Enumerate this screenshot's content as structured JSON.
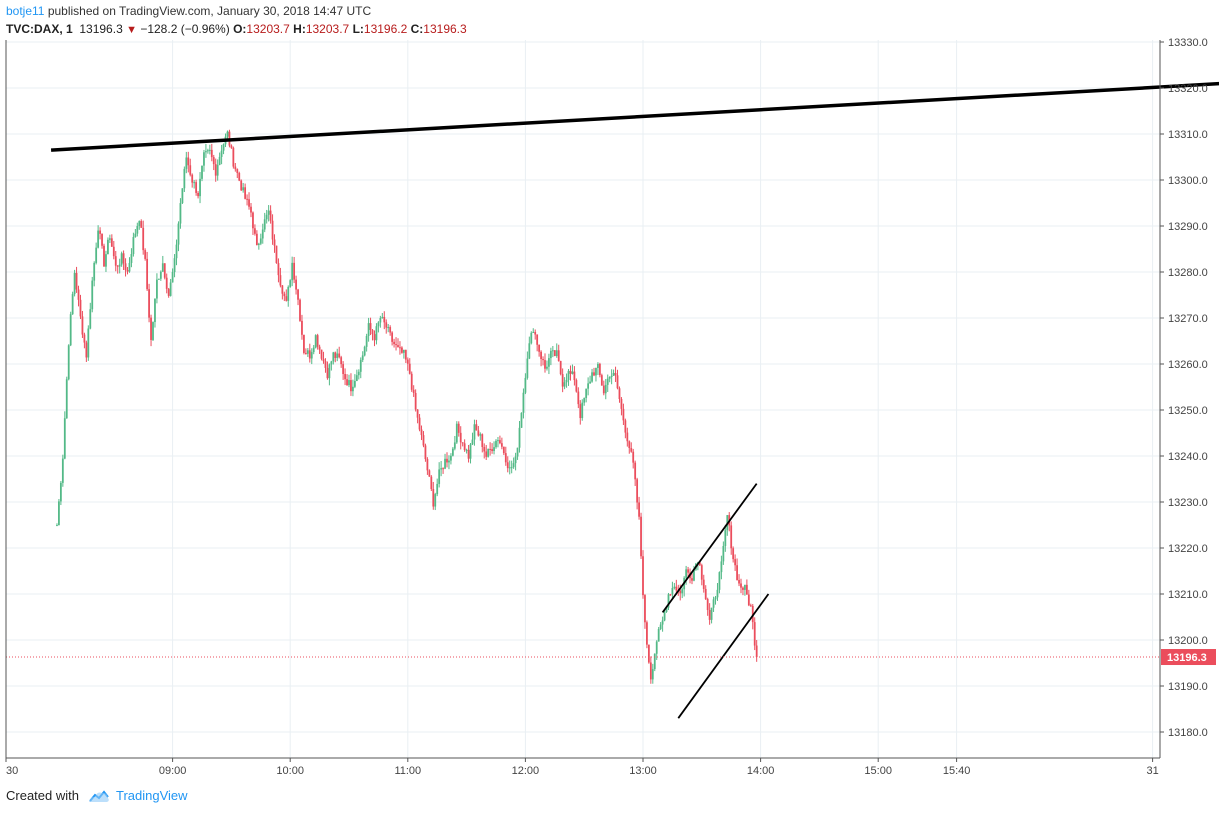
{
  "header": {
    "author": "botje11",
    "published_text": " published on TradingView.com, January 30, 2018 14:47 UTC"
  },
  "legend": {
    "symbol": "TVC:DAX, 1",
    "last": "13196.3",
    "arrow": "▼",
    "change": "−128.2 (−0.96%)",
    "open_label": "O:",
    "open": "13203.7",
    "high_label": "H:",
    "high": "13203.7",
    "low_label": "L:",
    "low": "13196.2",
    "close_label": "C:",
    "close": "13196.3"
  },
  "footer": {
    "created_with": "Created with",
    "brand": "TradingView"
  },
  "colors": {
    "up": "#53b987",
    "down": "#eb4d5c",
    "grid": "#e9eff3",
    "trendline": "#000000",
    "price_tag": "#eb4d5c"
  },
  "chart_data": {
    "type": "candlestick",
    "symbol": "TVC:DAX",
    "interval": "1",
    "ylim": [
      13176,
      13333
    ],
    "y_ticks": [
      13180,
      13190,
      13200,
      13210,
      13220,
      13230,
      13240,
      13250,
      13260,
      13270,
      13280,
      13290,
      13300,
      13310,
      13320,
      13330
    ],
    "y_tick_labels": [
      "13180.0",
      "13190.0",
      "13200.0",
      "13210.0",
      "13220.0",
      "13230.0",
      "13240.0",
      "13250.0",
      "13260.0",
      "13270.0",
      "13280.0",
      "13290.0",
      "13300.0",
      "13310.0",
      "13320.0",
      "13330.0"
    ],
    "x_ticks": [
      {
        "label": "30",
        "minutes": 455
      },
      {
        "label": "09:00",
        "minutes": 540
      },
      {
        "label": "10:00",
        "minutes": 600
      },
      {
        "label": "11:00",
        "minutes": 660
      },
      {
        "label": "12:00",
        "minutes": 720
      },
      {
        "label": "13:00",
        "minutes": 780
      },
      {
        "label": "14:00",
        "minutes": 840
      },
      {
        "label": "15:00",
        "minutes": 900
      },
      {
        "label": "15:40",
        "minutes": 940
      },
      {
        "label": "31",
        "minutes": 1040
      },
      {
        "label": "09:00",
        "minutes": 1100
      }
    ],
    "last_price": 13196.3,
    "last_price_label": "13196.3",
    "price_path": [
      [
        481,
        13225
      ],
      [
        484,
        13240
      ],
      [
        487,
        13265
      ],
      [
        490,
        13280
      ],
      [
        493,
        13270
      ],
      [
        496,
        13262
      ],
      [
        499,
        13278
      ],
      [
        502,
        13290
      ],
      [
        505,
        13282
      ],
      [
        508,
        13288
      ],
      [
        511,
        13281
      ],
      [
        514,
        13283
      ],
      [
        517,
        13280
      ],
      [
        520,
        13287
      ],
      [
        523,
        13292
      ],
      [
        526,
        13282
      ],
      [
        529,
        13265
      ],
      [
        532,
        13278
      ],
      [
        535,
        13282
      ],
      [
        538,
        13275
      ],
      [
        541,
        13282
      ],
      [
        544,
        13295
      ],
      [
        547,
        13305
      ],
      [
        550,
        13300
      ],
      [
        553,
        13297
      ],
      [
        556,
        13305
      ],
      [
        559,
        13306
      ],
      [
        562,
        13302
      ],
      [
        565,
        13307
      ],
      [
        568,
        13310
      ],
      [
        571,
        13304
      ],
      [
        574,
        13300
      ],
      [
        577,
        13296
      ],
      [
        580,
        13293
      ],
      [
        583,
        13285
      ],
      [
        586,
        13290
      ],
      [
        589,
        13293
      ],
      [
        592,
        13285
      ],
      [
        595,
        13278
      ],
      [
        598,
        13273
      ],
      [
        601,
        13282
      ],
      [
        604,
        13274
      ],
      [
        607,
        13263
      ],
      [
        610,
        13262
      ],
      [
        613,
        13266
      ],
      [
        616,
        13262
      ],
      [
        619,
        13258
      ],
      [
        622,
        13262
      ],
      [
        625,
        13261
      ],
      [
        628,
        13257
      ],
      [
        631,
        13255
      ],
      [
        634,
        13258
      ],
      [
        637,
        13262
      ],
      [
        640,
        13268
      ],
      [
        643,
        13266
      ],
      [
        646,
        13270
      ],
      [
        649,
        13268
      ],
      [
        652,
        13265
      ],
      [
        655,
        13263
      ],
      [
        658,
        13262
      ],
      [
        661,
        13258
      ],
      [
        664,
        13250
      ],
      [
        667,
        13244
      ],
      [
        670,
        13237
      ],
      [
        673,
        13230
      ],
      [
        676,
        13236
      ],
      [
        679,
        13239
      ],
      [
        682,
        13240
      ],
      [
        685,
        13246
      ],
      [
        688,
        13243
      ],
      [
        691,
        13240
      ],
      [
        694,
        13246
      ],
      [
        697,
        13244
      ],
      [
        700,
        13240
      ],
      [
        703,
        13242
      ],
      [
        706,
        13244
      ],
      [
        709,
        13241
      ],
      [
        712,
        13237
      ],
      [
        715,
        13239
      ],
      [
        718,
        13250
      ],
      [
        721,
        13262
      ],
      [
        724,
        13268
      ],
      [
        727,
        13263
      ],
      [
        730,
        13259
      ],
      [
        733,
        13262
      ],
      [
        736,
        13262
      ],
      [
        739,
        13256
      ],
      [
        742,
        13258
      ],
      [
        745,
        13257
      ],
      [
        748,
        13249
      ],
      [
        751,
        13254
      ],
      [
        754,
        13258
      ],
      [
        757,
        13259
      ],
      [
        760,
        13254
      ],
      [
        763,
        13258
      ],
      [
        766,
        13257
      ],
      [
        769,
        13250
      ],
      [
        772,
        13244
      ],
      [
        775,
        13238
      ],
      [
        778,
        13226
      ],
      [
        781,
        13203
      ],
      [
        784,
        13192
      ],
      [
        787,
        13200
      ],
      [
        790,
        13204
      ],
      [
        793,
        13210
      ],
      [
        796,
        13212
      ],
      [
        799,
        13210
      ],
      [
        802,
        13215
      ],
      [
        805,
        13214
      ],
      [
        808,
        13218
      ],
      [
        811,
        13212
      ],
      [
        814,
        13204
      ],
      [
        817,
        13210
      ],
      [
        820,
        13216
      ],
      [
        823,
        13227
      ],
      [
        826,
        13218
      ],
      [
        829,
        13212
      ],
      [
        832,
        13211
      ],
      [
        835,
        13207
      ],
      [
        838,
        13196.3
      ]
    ],
    "trendlines": [
      {
        "from": [
          478,
          13306.5
        ],
        "to": [
          1097,
          13321.5
        ]
      },
      {
        "from": [
          790,
          13206
        ],
        "to": [
          838,
          13234
        ]
      },
      {
        "from": [
          798,
          13183
        ],
        "to": [
          844,
          13210
        ]
      }
    ]
  }
}
